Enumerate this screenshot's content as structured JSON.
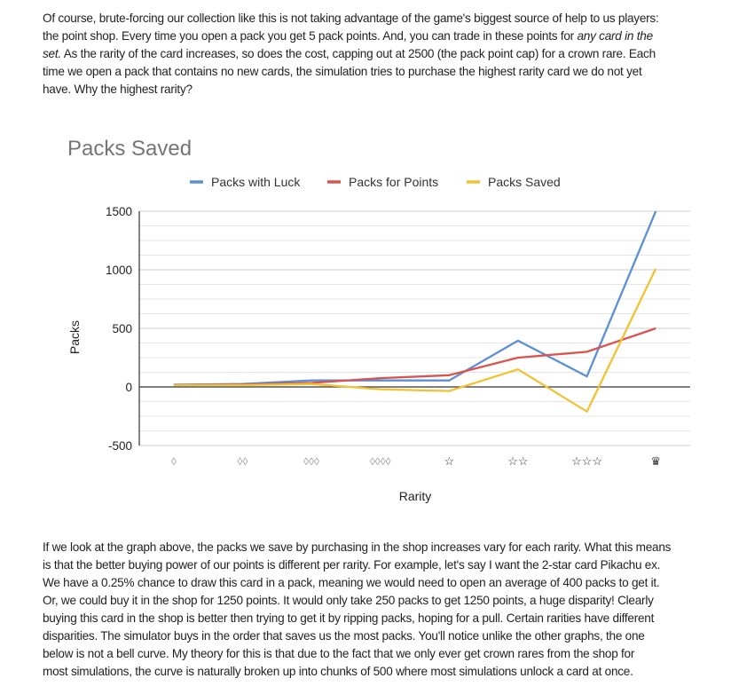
{
  "intro": {
    "lines": [
      "Of course, brute-forcing our collection like this is not taking advantage of the game's biggest source of help to us players:",
      "the point shop. Every time you open a pack you get 5 pack points. And, you can trade in these points for ",
      " As the rarity of the card increases, so does the cost, capping out at 2500 (the pack point cap) for a crown rare. Each",
      "time we open a pack that contains no new cards, the simulation tries to purchase the highest rarity card we do not yet",
      "have. Why the highest rarity?"
    ],
    "italic_1": "any card in the",
    "italic_2": "set."
  },
  "outro": {
    "lines": [
      "If we look at the graph above, the packs we save by purchasing in the shop increases vary for each rarity. What this means",
      "is that the better buying power of our points is different per rarity. For example, let's say I want the 2-star card Pikachu ex.",
      "We have a 0.25% chance to draw this card in a pack, meaning we would need to open an average of 400 packs to get it.",
      "Or, we could buy it in the shop for 1250 points. It would only take 250 packs to get 1250 points, a huge disparity! Clearly",
      "buying this card in the shop is better then trying to get it by ripping packs, hoping for a pull. Certain rarities have different",
      "disparities. The simulator buys in the order that saves us the most packs. You'll notice unlike the other graphs, the one",
      "below is not a bell curve. My theory for this is that due to the fact that we only ever get crown rares from the shop for",
      "most simulations, the curve is naturally broken up into chunks of 500 where most simulations unlock a card at once."
    ]
  },
  "chart_data": {
    "type": "line",
    "title": "Packs Saved",
    "xlabel": "Rarity",
    "ylabel": "Packs",
    "categories": [
      "◊",
      "◊◊",
      "◊◊◊",
      "◊◊◊◊",
      "☆",
      "☆☆",
      "☆☆☆",
      "♛"
    ],
    "ylim": [
      -500,
      1500
    ],
    "yticks": [
      1500,
      1000,
      500,
      0,
      -500
    ],
    "ytick_labels": [
      "1500",
      "1000",
      "500",
      "0",
      "-500"
    ],
    "grid": true,
    "legend_position": "top",
    "series": [
      {
        "name": "Packs with Luck",
        "color": "#5b8fd6",
        "values": [
          20,
          25,
          55,
          55,
          55,
          395,
          90,
          1500
        ]
      },
      {
        "name": "Packs for Points",
        "color": "#d9534f",
        "values": [
          15,
          20,
          35,
          75,
          100,
          250,
          300,
          500
        ]
      },
      {
        "name": "Packs Saved",
        "color": "#f1c232",
        "values": [
          15,
          15,
          25,
          -20,
          -35,
          150,
          -210,
          1010
        ]
      }
    ]
  }
}
